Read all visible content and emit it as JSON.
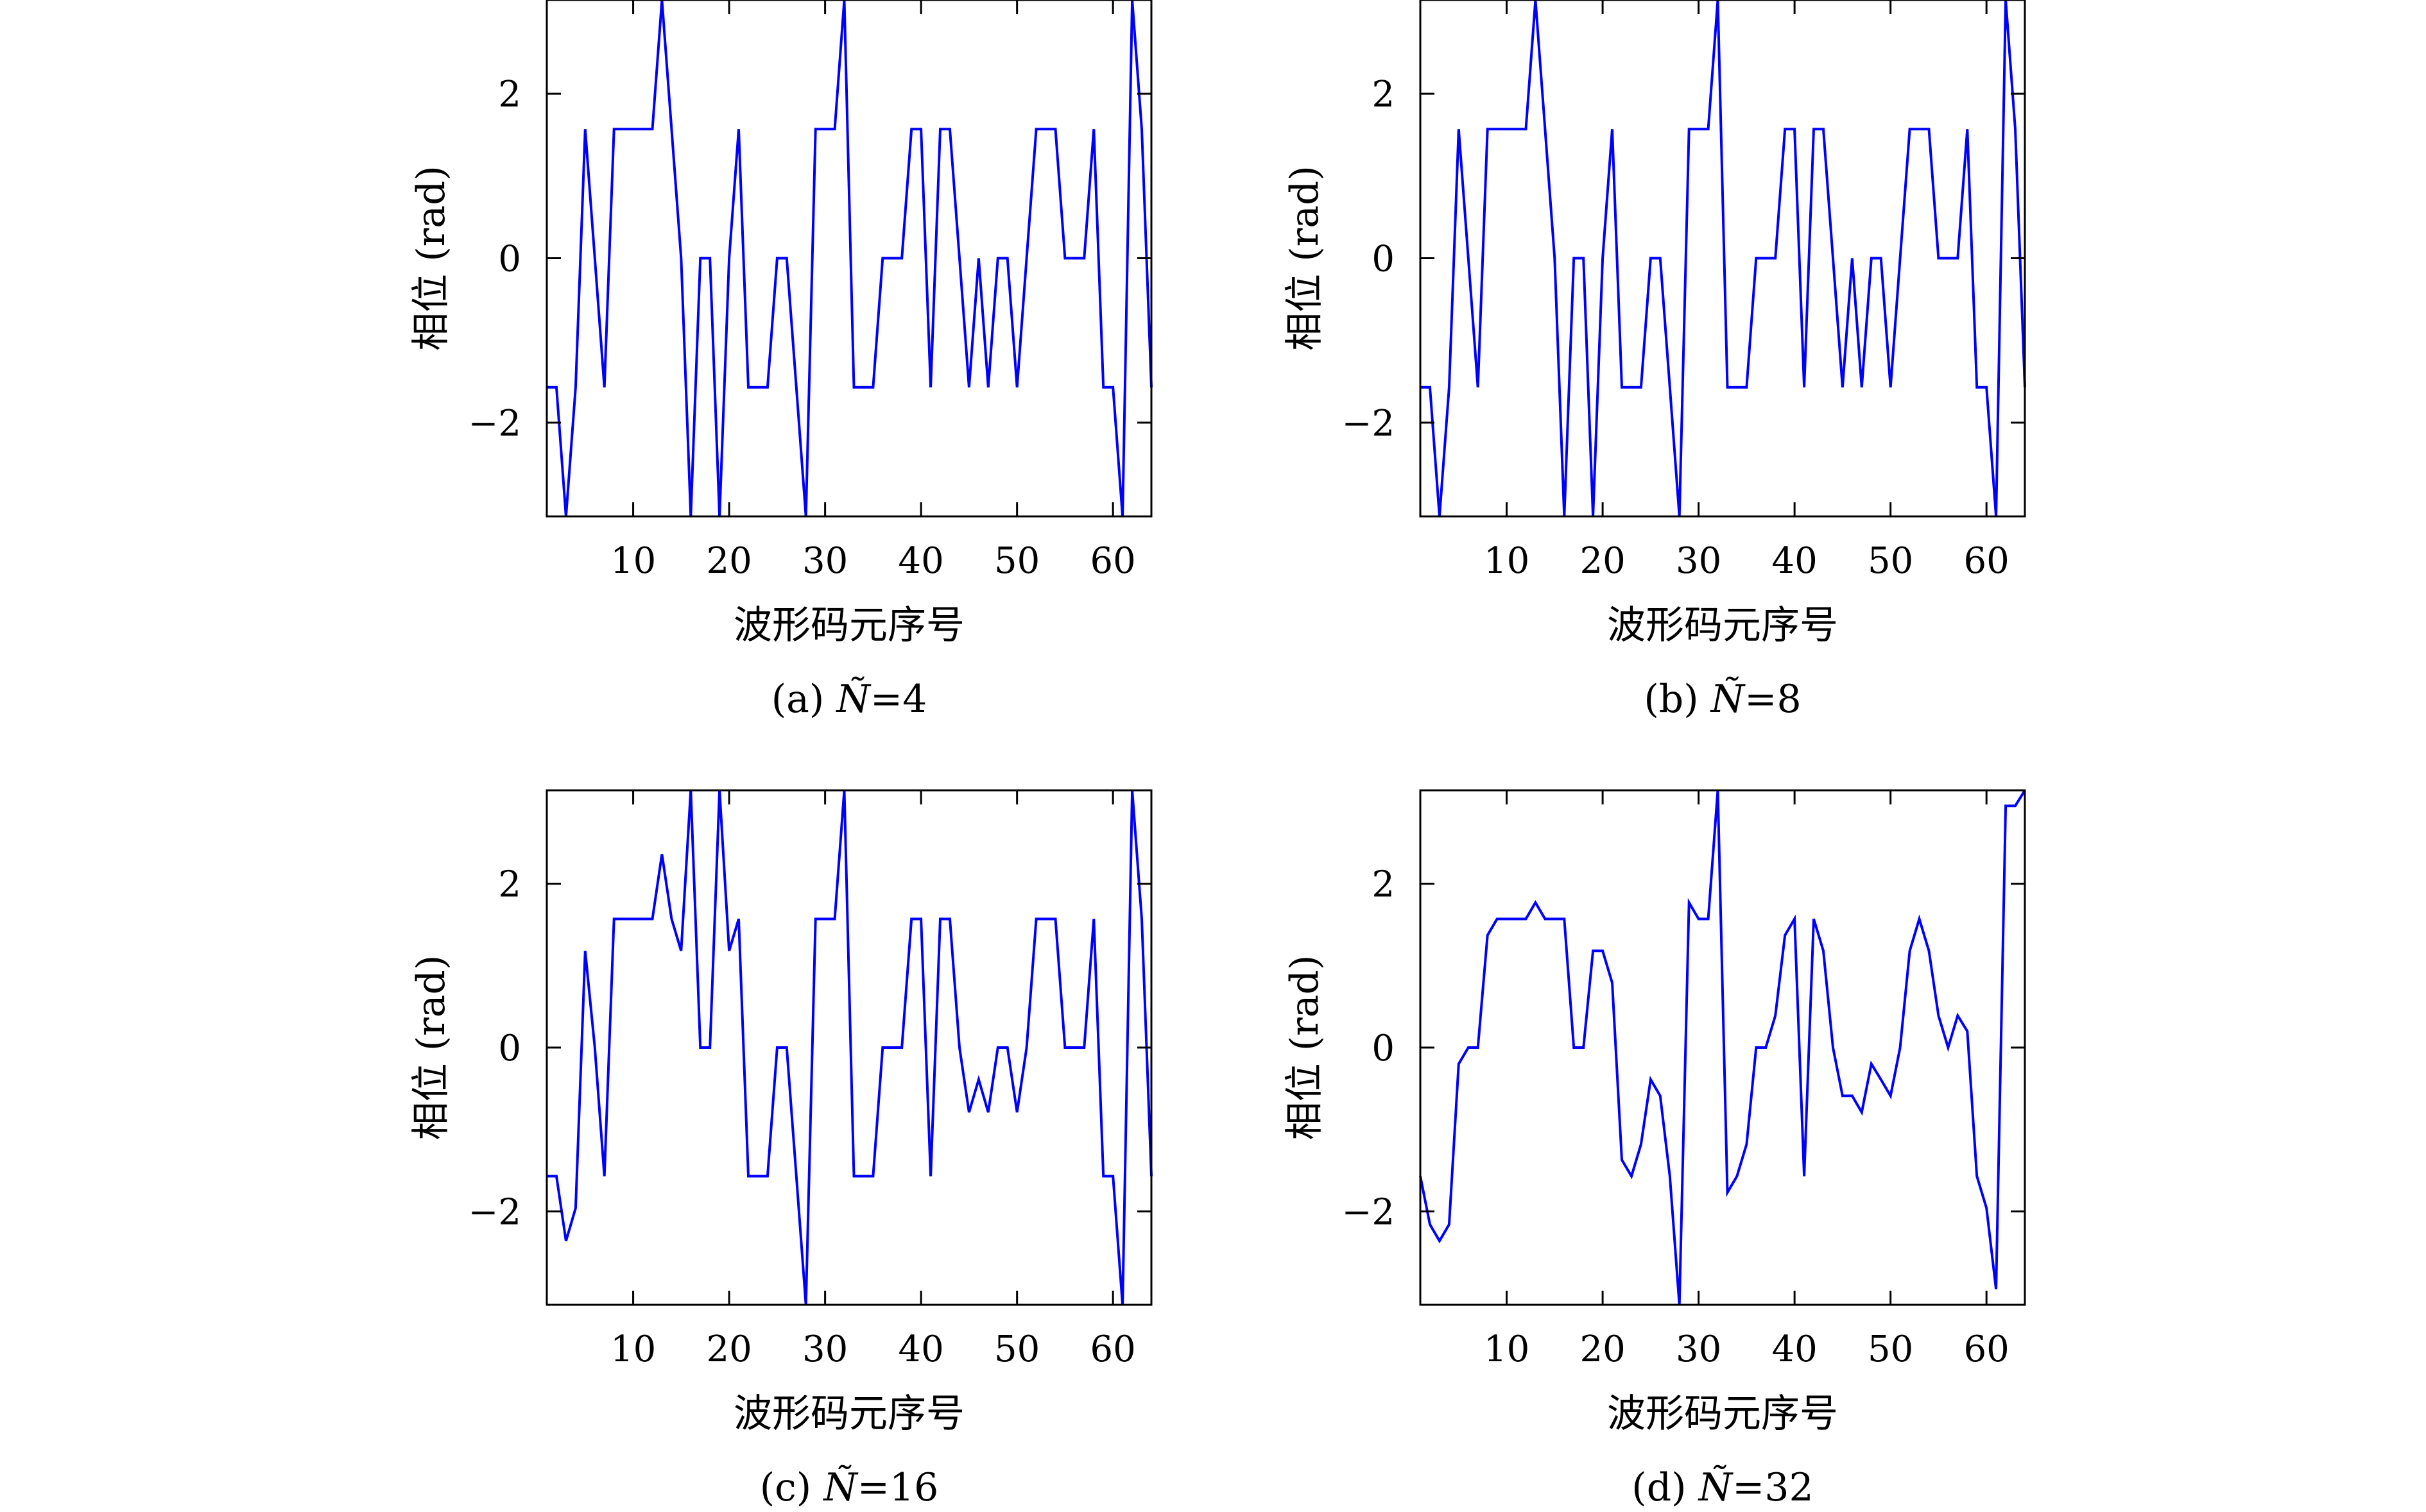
{
  "figure": {
    "panels_layout": "2x2",
    "line_color": "#0000ff"
  },
  "chart_data": [
    {
      "type": "line",
      "panel": "a",
      "caption": {
        "prefix": "(a) ",
        "symbol": "Ñ",
        "value": "=4"
      },
      "xlabel": "波形码元序号",
      "ylabel": "相位 (rad)",
      "xlim": [
        1,
        64
      ],
      "ylim": [
        -3.14,
        3.14
      ],
      "xticks": [
        "10",
        "20",
        "30",
        "40",
        "50",
        "60"
      ],
      "yticks": [
        "−2",
        "0",
        "2"
      ],
      "grid": false,
      "series": [
        {
          "x": [
            1,
            2,
            3,
            4,
            5,
            6,
            7,
            8,
            9,
            10,
            11,
            12,
            13,
            14,
            15,
            16,
            17,
            18,
            19,
            20,
            21,
            22,
            23,
            24,
            25,
            26,
            27,
            28,
            29,
            30,
            31,
            32,
            33,
            34,
            35,
            36,
            37,
            38,
            39,
            40,
            41,
            42,
            43,
            44,
            45,
            46,
            47,
            48,
            49,
            50,
            51,
            52,
            53,
            54,
            55,
            56,
            57,
            58,
            59,
            60,
            61,
            62,
            63,
            64
          ],
          "y": [
            -1.57,
            -1.57,
            -3.14,
            -1.57,
            1.57,
            0,
            -1.57,
            1.57,
            1.57,
            1.57,
            1.57,
            1.57,
            3.14,
            1.57,
            0,
            -3.14,
            0,
            0,
            -3.14,
            0,
            1.57,
            -1.57,
            -1.57,
            -1.57,
            0,
            0,
            -1.57,
            -3.14,
            1.57,
            1.57,
            1.57,
            3.14,
            -1.57,
            -1.57,
            -1.57,
            0,
            0,
            0,
            1.57,
            1.57,
            -1.57,
            1.57,
            1.57,
            0,
            -1.57,
            0,
            -1.57,
            0,
            0,
            -1.57,
            0,
            1.57,
            1.57,
            1.57,
            0,
            0,
            0,
            1.57,
            -1.57,
            -1.57,
            -3.14,
            3.14,
            1.57,
            -1.57
          ]
        }
      ]
    },
    {
      "type": "line",
      "panel": "b",
      "caption": {
        "prefix": "(b) ",
        "symbol": "Ñ",
        "value": "=8"
      },
      "xlabel": "波形码元序号",
      "ylabel": "相位 (rad)",
      "xlim": [
        1,
        64
      ],
      "ylim": [
        -3.14,
        3.14
      ],
      "xticks": [
        "10",
        "20",
        "30",
        "40",
        "50",
        "60"
      ],
      "yticks": [
        "−2",
        "0",
        "2"
      ],
      "grid": false,
      "series": [
        {
          "x": [
            1,
            2,
            3,
            4,
            5,
            6,
            7,
            8,
            9,
            10,
            11,
            12,
            13,
            14,
            15,
            16,
            17,
            18,
            19,
            20,
            21,
            22,
            23,
            24,
            25,
            26,
            27,
            28,
            29,
            30,
            31,
            32,
            33,
            34,
            35,
            36,
            37,
            38,
            39,
            40,
            41,
            42,
            43,
            44,
            45,
            46,
            47,
            48,
            49,
            50,
            51,
            52,
            53,
            54,
            55,
            56,
            57,
            58,
            59,
            60,
            61,
            62,
            63,
            64
          ],
          "y": [
            -1.57,
            -1.57,
            -3.14,
            -1.57,
            1.57,
            0,
            -1.57,
            1.57,
            1.57,
            1.57,
            1.57,
            1.57,
            3.14,
            1.57,
            0,
            -3.14,
            0,
            0,
            -3.14,
            0,
            1.57,
            -1.57,
            -1.57,
            -1.57,
            0,
            0,
            -1.57,
            -3.14,
            1.57,
            1.57,
            1.57,
            3.14,
            -1.57,
            -1.57,
            -1.57,
            0,
            0,
            0,
            1.57,
            1.57,
            -1.57,
            1.57,
            1.57,
            0,
            -1.57,
            0,
            -1.57,
            0,
            0,
            -1.57,
            0,
            1.57,
            1.57,
            1.57,
            0,
            0,
            0,
            1.57,
            -1.57,
            -1.57,
            -3.14,
            3.14,
            1.57,
            -1.57
          ]
        }
      ]
    },
    {
      "type": "line",
      "panel": "c",
      "caption": {
        "prefix": "(c) ",
        "symbol": "Ñ",
        "value": "=16"
      },
      "xlabel": "波形码元序号",
      "ylabel": "相位 (rad)",
      "xlim": [
        1,
        64
      ],
      "ylim": [
        -3.14,
        3.14
      ],
      "xticks": [
        "10",
        "20",
        "30",
        "40",
        "50",
        "60"
      ],
      "yticks": [
        "−2",
        "0",
        "2"
      ],
      "grid": false,
      "series": [
        {
          "x": [
            1,
            2,
            3,
            4,
            5,
            6,
            7,
            8,
            9,
            10,
            11,
            12,
            13,
            14,
            15,
            16,
            17,
            18,
            19,
            20,
            21,
            22,
            23,
            24,
            25,
            26,
            27,
            28,
            29,
            30,
            31,
            32,
            33,
            34,
            35,
            36,
            37,
            38,
            39,
            40,
            41,
            42,
            43,
            44,
            45,
            46,
            47,
            48,
            49,
            50,
            51,
            52,
            53,
            54,
            55,
            56,
            57,
            58,
            59,
            60,
            61,
            62,
            63,
            64
          ],
          "y": [
            -1.57,
            -1.57,
            -2.36,
            -1.96,
            1.18,
            0,
            -1.57,
            1.57,
            1.57,
            1.57,
            1.57,
            1.57,
            2.36,
            1.57,
            1.18,
            3.14,
            0,
            0,
            3.14,
            1.18,
            1.57,
            -1.57,
            -1.57,
            -1.57,
            0,
            0,
            -1.57,
            -3.14,
            1.57,
            1.57,
            1.57,
            3.14,
            -1.57,
            -1.57,
            -1.57,
            0,
            0,
            0,
            1.57,
            1.57,
            -1.57,
            1.57,
            1.57,
            0,
            -0.79,
            -0.39,
            -0.79,
            0,
            0,
            -0.79,
            0,
            1.57,
            1.57,
            1.57,
            0,
            0,
            0,
            1.57,
            -1.57,
            -1.57,
            -3.14,
            3.14,
            1.57,
            -1.57
          ]
        }
      ]
    },
    {
      "type": "line",
      "panel": "d",
      "caption": {
        "prefix": "(d) ",
        "symbol": "Ñ",
        "value": "=32"
      },
      "xlabel": "波形码元序号",
      "ylabel": "相位 (rad)",
      "xlim": [
        1,
        64
      ],
      "ylim": [
        -3.14,
        3.14
      ],
      "xticks": [
        "10",
        "20",
        "30",
        "40",
        "50",
        "60"
      ],
      "yticks": [
        "−2",
        "0",
        "2"
      ],
      "grid": false,
      "series": [
        {
          "x": [
            1,
            2,
            3,
            4,
            5,
            6,
            7,
            8,
            9,
            10,
            11,
            12,
            13,
            14,
            15,
            16,
            17,
            18,
            19,
            20,
            21,
            22,
            23,
            24,
            25,
            26,
            27,
            28,
            29,
            30,
            31,
            32,
            33,
            34,
            35,
            36,
            37,
            38,
            39,
            40,
            41,
            42,
            43,
            44,
            45,
            46,
            47,
            48,
            49,
            50,
            51,
            52,
            53,
            54,
            55,
            56,
            57,
            58,
            59,
            60,
            61,
            62,
            63,
            64
          ],
          "y": [
            -1.57,
            -2.16,
            -2.36,
            -2.16,
            -0.2,
            0,
            0,
            1.37,
            1.57,
            1.57,
            1.57,
            1.57,
            1.77,
            1.57,
            1.57,
            1.57,
            0,
            0,
            1.18,
            1.18,
            0.79,
            -1.37,
            -1.57,
            -1.18,
            -0.39,
            -0.59,
            -1.57,
            -3.14,
            1.77,
            1.57,
            1.57,
            3.14,
            -1.77,
            -1.57,
            -1.18,
            0,
            0,
            0.39,
            1.37,
            1.57,
            -1.57,
            1.57,
            1.18,
            0,
            -0.59,
            -0.59,
            -0.79,
            -0.2,
            -0.39,
            -0.59,
            0,
            1.18,
            1.57,
            1.18,
            0.39,
            0,
            0.39,
            0.2,
            -1.57,
            -1.96,
            -2.95,
            2.95,
            2.95,
            3.14
          ]
        }
      ]
    }
  ]
}
